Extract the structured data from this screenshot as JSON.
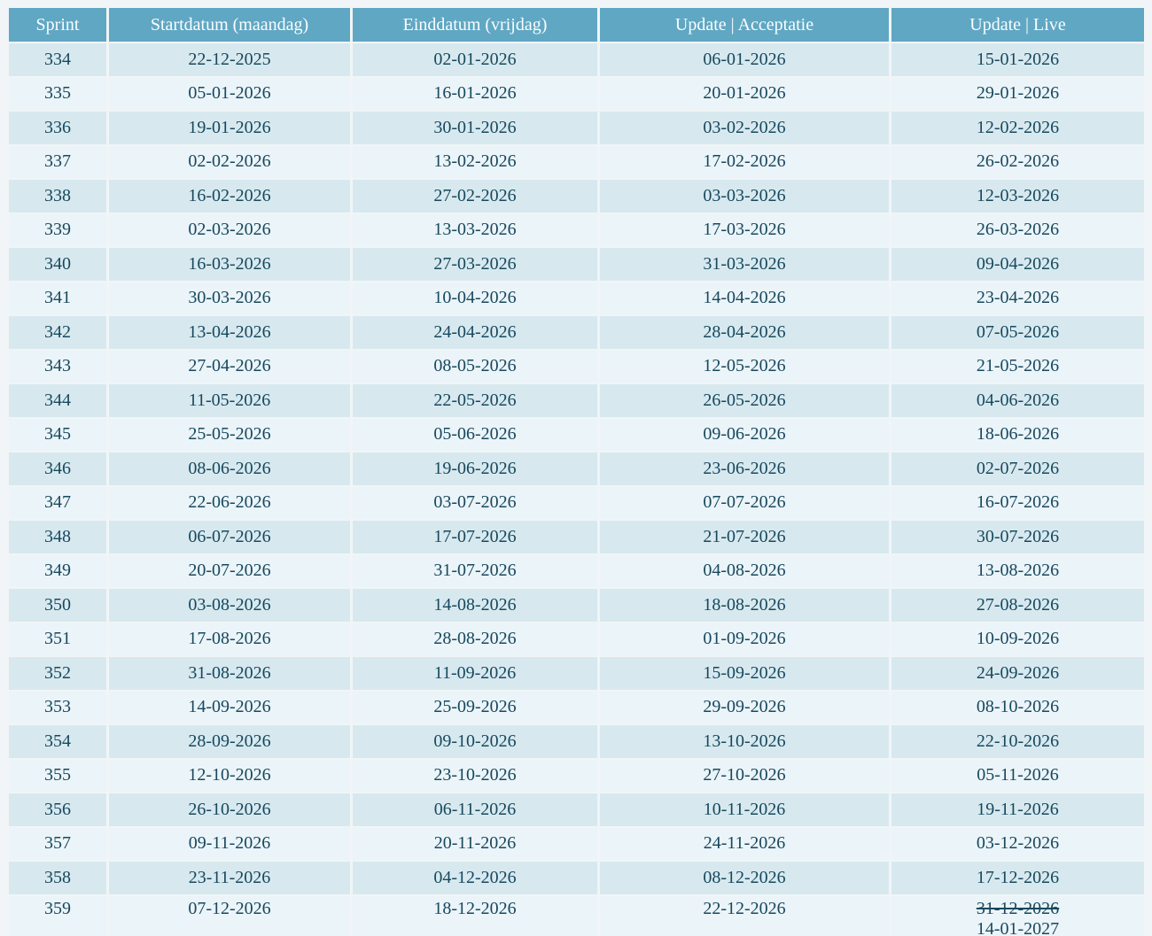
{
  "colors": {
    "page_background": "#f1f5f7",
    "header_background": "#60a7c3",
    "header_text": "#fafdfe",
    "row_shaded": "#d7e9ef",
    "row_light": "#ebf4f8",
    "cell_text": "#17485e"
  },
  "table": {
    "columns": [
      {
        "key": "sprint",
        "label": "Sprint"
      },
      {
        "key": "startdatum",
        "label": "Startdatum (maandag)"
      },
      {
        "key": "einddatum",
        "label": "Einddatum (vrijdag)"
      },
      {
        "key": "update-acceptatie",
        "label": "Update | Acceptatie"
      },
      {
        "key": "update-live",
        "label": "Update | Live"
      }
    ],
    "rows": [
      {
        "sprint": "334",
        "start": "22-12-2025",
        "end": "02-01-2026",
        "acceptatie": "06-01-2026",
        "live": "15-01-2026"
      },
      {
        "sprint": "335",
        "start": "05-01-2026",
        "end": "16-01-2026",
        "acceptatie": "20-01-2026",
        "live": "29-01-2026"
      },
      {
        "sprint": "336",
        "start": "19-01-2026",
        "end": "30-01-2026",
        "acceptatie": "03-02-2026",
        "live": "12-02-2026"
      },
      {
        "sprint": "337",
        "start": "02-02-2026",
        "end": "13-02-2026",
        "acceptatie": "17-02-2026",
        "live": "26-02-2026"
      },
      {
        "sprint": "338",
        "start": "16-02-2026",
        "end": "27-02-2026",
        "acceptatie": "03-03-2026",
        "live": "12-03-2026"
      },
      {
        "sprint": "339",
        "start": "02-03-2026",
        "end": "13-03-2026",
        "acceptatie": "17-03-2026",
        "live": "26-03-2026"
      },
      {
        "sprint": "340",
        "start": "16-03-2026",
        "end": "27-03-2026",
        "acceptatie": "31-03-2026",
        "live": "09-04-2026"
      },
      {
        "sprint": "341",
        "start": "30-03-2026",
        "end": "10-04-2026",
        "acceptatie": "14-04-2026",
        "live": "23-04-2026"
      },
      {
        "sprint": "342",
        "start": "13-04-2026",
        "end": "24-04-2026",
        "acceptatie": "28-04-2026",
        "live": "07-05-2026"
      },
      {
        "sprint": "343",
        "start": "27-04-2026",
        "end": "08-05-2026",
        "acceptatie": "12-05-2026",
        "live": "21-05-2026"
      },
      {
        "sprint": "344",
        "start": "11-05-2026",
        "end": "22-05-2026",
        "acceptatie": "26-05-2026",
        "live": "04-06-2026"
      },
      {
        "sprint": "345",
        "start": "25-05-2026",
        "end": "05-06-2026",
        "acceptatie": "09-06-2026",
        "live": "18-06-2026"
      },
      {
        "sprint": "346",
        "start": "08-06-2026",
        "end": "19-06-2026",
        "acceptatie": "23-06-2026",
        "live": "02-07-2026"
      },
      {
        "sprint": "347",
        "start": "22-06-2026",
        "end": "03-07-2026",
        "acceptatie": "07-07-2026",
        "live": "16-07-2026"
      },
      {
        "sprint": "348",
        "start": "06-07-2026",
        "end": "17-07-2026",
        "acceptatie": "21-07-2026",
        "live": "30-07-2026"
      },
      {
        "sprint": "349",
        "start": "20-07-2026",
        "end": "31-07-2026",
        "acceptatie": "04-08-2026",
        "live": "13-08-2026"
      },
      {
        "sprint": "350",
        "start": "03-08-2026",
        "end": "14-08-2026",
        "acceptatie": "18-08-2026",
        "live": "27-08-2026"
      },
      {
        "sprint": "351",
        "start": "17-08-2026",
        "end": "28-08-2026",
        "acceptatie": "01-09-2026",
        "live": "10-09-2026"
      },
      {
        "sprint": "352",
        "start": "31-08-2026",
        "end": "11-09-2026",
        "acceptatie": "15-09-2026",
        "live": "24-09-2026"
      },
      {
        "sprint": "353",
        "start": "14-09-2026",
        "end": "25-09-2026",
        "acceptatie": "29-09-2026",
        "live": "08-10-2026"
      },
      {
        "sprint": "354",
        "start": "28-09-2026",
        "end": "09-10-2026",
        "acceptatie": "13-10-2026",
        "live": "22-10-2026"
      },
      {
        "sprint": "355",
        "start": "12-10-2026",
        "end": "23-10-2026",
        "acceptatie": "27-10-2026",
        "live": "05-11-2026"
      },
      {
        "sprint": "356",
        "start": "26-10-2026",
        "end": "06-11-2026",
        "acceptatie": "10-11-2026",
        "live": "19-11-2026"
      },
      {
        "sprint": "357",
        "start": "09-11-2026",
        "end": "20-11-2026",
        "acceptatie": "24-11-2026",
        "live": "03-12-2026"
      },
      {
        "sprint": "358",
        "start": "23-11-2026",
        "end": "04-12-2026",
        "acceptatie": "08-12-2026",
        "live": "17-12-2026"
      },
      {
        "sprint": "359",
        "start": "07-12-2026",
        "end": "18-12-2026",
        "acceptatie": "22-12-2026",
        "live": "31-12-2026",
        "live_struck": true,
        "live_new": "14-01-2027"
      }
    ]
  }
}
